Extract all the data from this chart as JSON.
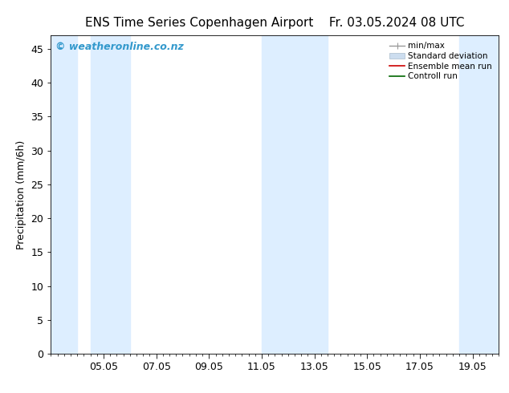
{
  "title": "ENS Time Series Copenhagen Airport",
  "title_right": "Fr. 03.05.2024 08 UTC",
  "ylabel": "Precipitation (mm/6h)",
  "watermark": "© weatheronline.co.nz",
  "ylim": [
    0,
    47
  ],
  "yticks": [
    0,
    5,
    10,
    15,
    20,
    25,
    30,
    35,
    40,
    45
  ],
  "xtick_labels": [
    "05.05",
    "07.05",
    "09.05",
    "11.05",
    "13.05",
    "15.05",
    "17.05",
    "19.05"
  ],
  "xtick_positions": [
    2,
    4,
    6,
    8,
    10,
    12,
    14,
    16
  ],
  "xmin": 0,
  "xmax": 17.0,
  "shaded_bands": [
    [
      0.0,
      1.0
    ],
    [
      1.5,
      3.0
    ],
    [
      8.0,
      10.5
    ],
    [
      15.5,
      17.0
    ]
  ],
  "band_color": "#ddeeff",
  "bg_color": "#ffffff",
  "legend_labels": [
    "min/max",
    "Standard deviation",
    "Ensemble mean run",
    "Controll run"
  ],
  "title_fontsize": 11,
  "tick_fontsize": 9,
  "ylabel_fontsize": 9,
  "watermark_color": "#3399cc",
  "watermark_fontsize": 9
}
